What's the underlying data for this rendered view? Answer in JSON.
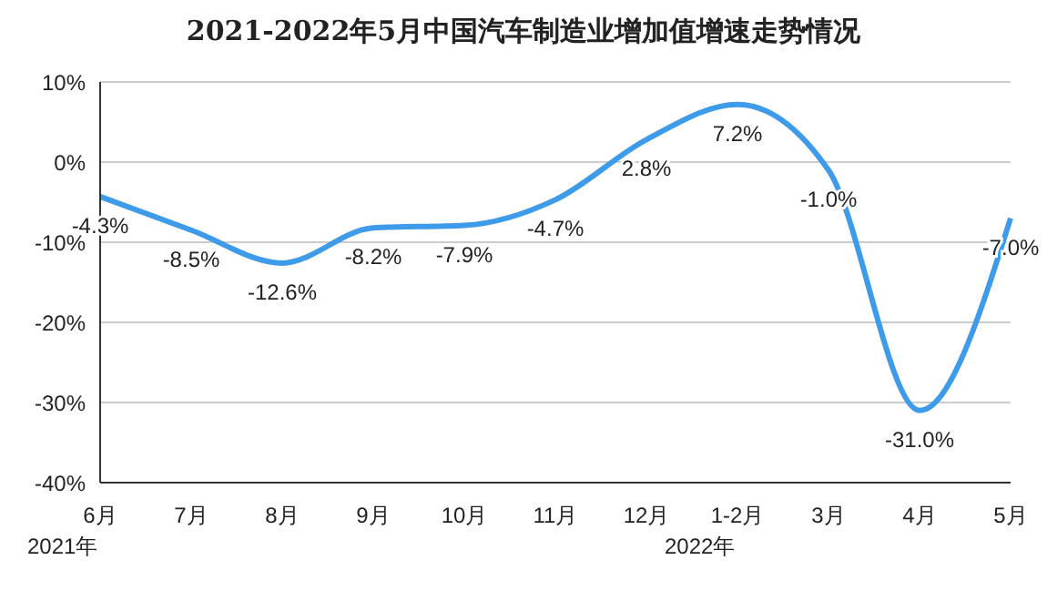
{
  "chart_data": {
    "type": "line",
    "title": "2021-2022年5月中国汽车制造业增加值增速走势情况",
    "categories": [
      "6月",
      "7月",
      "8月",
      "9月",
      "10月",
      "11月",
      "12月",
      "1-2月",
      "3月",
      "4月",
      "5月"
    ],
    "series": [
      {
        "color": "#3d9be9",
        "values": [
          -4.3,
          -8.5,
          -12.6,
          -8.2,
          -7.9,
          -4.7,
          2.8,
          7.2,
          -1.0,
          -31.0,
          -7.0
        ],
        "value_labels": [
          "-4.3%",
          "-8.5%",
          "-12.6%",
          "-8.2%",
          "-7.9%",
          "-4.7%",
          "2.8%",
          "7.2%",
          "-1.0%",
          "-31.0%",
          "-7.0%"
        ]
      }
    ],
    "ylim": [
      -40,
      10
    ],
    "yticks": [
      {
        "value": -40,
        "label": "-40%"
      },
      {
        "value": -30,
        "label": "-30%"
      },
      {
        "value": -20,
        "label": "-20%"
      },
      {
        "value": -10,
        "label": "-10%"
      },
      {
        "value": 0,
        "label": "0%"
      },
      {
        "value": 10,
        "label": "10%"
      }
    ],
    "grid": "y",
    "marker": "none",
    "line_style": "solid",
    "annotations": [
      "2021年",
      "2022年"
    ]
  }
}
